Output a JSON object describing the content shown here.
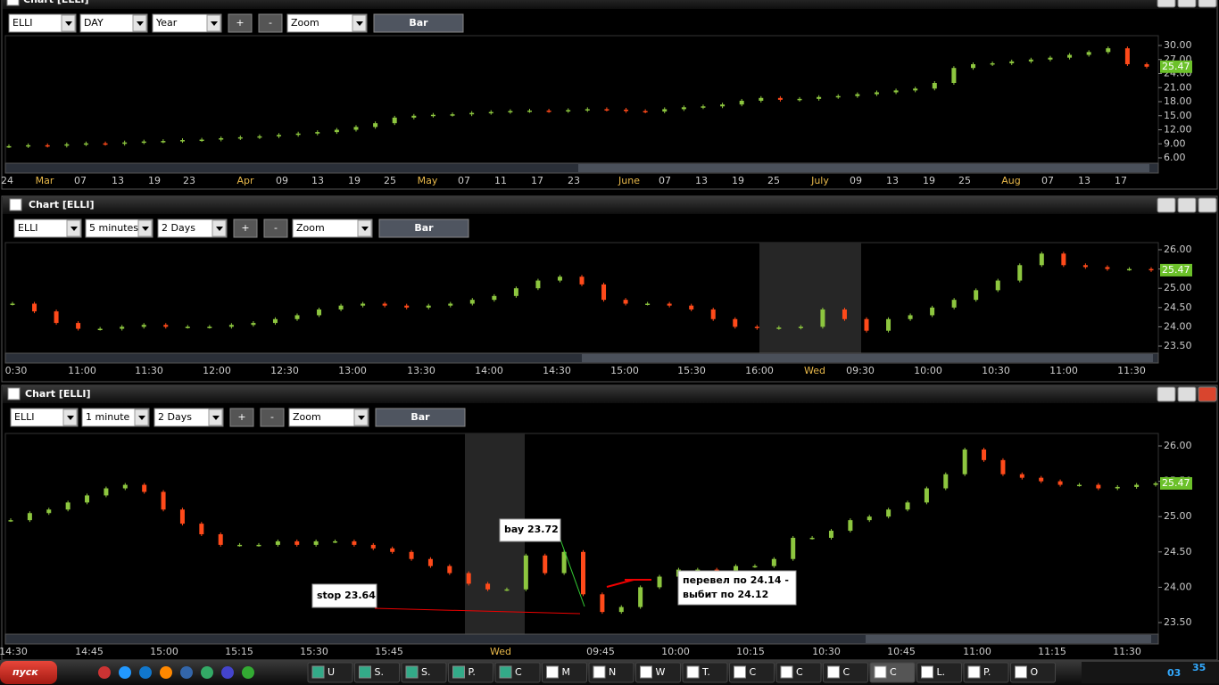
{
  "windows": [
    {
      "title": "Chart [ELLI]",
      "symbol": "ELLI",
      "interval": "DAY",
      "range": "Year",
      "plus": "+",
      "minus": "-",
      "zoom": "Zoom",
      "mode": "Bar",
      "price_tag": "25.47",
      "yticks": [
        {
          "value": 30,
          "label": "30.00"
        },
        {
          "value": 27,
          "label": "27.00"
        },
        {
          "value": 24,
          "label": "24.00"
        },
        {
          "value": 21,
          "label": "21.00"
        },
        {
          "value": 18,
          "label": "18.00"
        },
        {
          "value": 15,
          "label": "15.00"
        },
        {
          "value": 12,
          "label": "12.00"
        },
        {
          "value": 9,
          "label": "9.00"
        },
        {
          "value": 6,
          "label": "6.00"
        }
      ],
      "x_labels": [
        "24",
        "Mar",
        "07",
        "13",
        "19",
        "23",
        "Apr",
        "09",
        "13",
        "19",
        "25",
        "May",
        "07",
        "11",
        "17",
        "23",
        "June",
        "07",
        "13",
        "19",
        "25",
        "July",
        "09",
        "13",
        "19",
        "25",
        "Aug",
        "07",
        "13",
        "17"
      ],
      "closes": [
        8.5,
        8.7,
        8.6,
        8.9,
        9.1,
        9.0,
        9.3,
        9.5,
        9.6,
        9.8,
        9.9,
        10.2,
        10.4,
        10.6,
        10.9,
        11.2,
        11.5,
        12.0,
        12.6,
        13.4,
        14.6,
        15.0,
        15.2,
        15.3,
        15.6,
        15.8,
        16.0,
        16.1,
        16.0,
        16.2,
        16.4,
        16.3,
        16.0,
        15.9,
        16.4,
        16.8,
        17.0,
        17.4,
        18.2,
        18.8,
        18.4,
        18.6,
        19.0,
        19.2,
        19.6,
        20.0,
        20.4,
        20.8,
        22.0,
        25.2,
        26.0,
        26.2,
        26.6,
        27.0,
        27.4,
        28.0,
        28.6,
        29.4,
        26.0,
        25.47
      ]
    },
    {
      "title": "Chart [ELLI]",
      "symbol": "ELLI",
      "interval": "5 minutes",
      "range": "2 Days",
      "plus": "+",
      "minus": "-",
      "zoom": "Zoom",
      "mode": "Bar",
      "price_tag": "25.47",
      "yticks": [
        {
          "value": 26,
          "label": "26.00"
        },
        {
          "value": 25.5,
          "label": "25.50"
        },
        {
          "value": 25,
          "label": "25.00"
        },
        {
          "value": 24.5,
          "label": "24.50"
        },
        {
          "value": 24,
          "label": "24.00"
        },
        {
          "value": 23.5,
          "label": "23.50"
        }
      ],
      "x_labels": [
        "0:30",
        "11:00",
        "11:30",
        "12:00",
        "12:30",
        "13:00",
        "13:30",
        "14:00",
        "14:30",
        "15:00",
        "15:30",
        "16:00",
        "Wed",
        "09:30",
        "10:00",
        "10:30",
        "11:00",
        "11:30"
      ],
      "closes": [
        24.6,
        24.4,
        24.1,
        23.95,
        23.95,
        24.0,
        24.05,
        24.0,
        24.0,
        24.0,
        24.05,
        24.1,
        24.2,
        24.3,
        24.45,
        24.55,
        24.6,
        24.55,
        24.5,
        24.55,
        24.6,
        24.7,
        24.8,
        25.0,
        25.2,
        25.3,
        25.1,
        24.7,
        24.6,
        24.6,
        24.55,
        24.45,
        24.2,
        24.0,
        23.97,
        23.98,
        24.0,
        24.45,
        24.2,
        23.9,
        24.2,
        24.3,
        24.5,
        24.7,
        24.95,
        25.2,
        25.6,
        25.9,
        25.6,
        25.55,
        25.5,
        25.5,
        25.47
      ]
    },
    {
      "title": "Chart [ELLI]",
      "symbol": "ELLI",
      "interval": "1 minute",
      "range": "2 Days",
      "plus": "+",
      "minus": "-",
      "zoom": "Zoom",
      "mode": "Bar",
      "price_tag": "25.47",
      "yticks": [
        {
          "value": 26,
          "label": "26.00"
        },
        {
          "value": 25.5,
          "label": "25.50"
        },
        {
          "value": 25,
          "label": "25.00"
        },
        {
          "value": 24.5,
          "label": "24.50"
        },
        {
          "value": 24,
          "label": "24.00"
        },
        {
          "value": 23.5,
          "label": "23.50"
        }
      ],
      "x_labels": [
        "14:30",
        "14:45",
        "15:00",
        "15:15",
        "15:30",
        "15:45",
        "Wed",
        "09:45",
        "10:00",
        "10:15",
        "10:30",
        "10:45",
        "11:00",
        "11:15",
        "11:30"
      ],
      "closes": [
        24.95,
        25.05,
        25.1,
        25.2,
        25.3,
        25.4,
        25.45,
        25.35,
        25.1,
        24.9,
        24.75,
        24.6,
        24.6,
        24.6,
        24.65,
        24.6,
        24.65,
        24.65,
        24.6,
        24.55,
        24.5,
        24.4,
        24.3,
        24.2,
        24.05,
        23.97,
        23.97,
        24.45,
        24.2,
        24.5,
        23.9,
        23.65,
        23.72,
        24.0,
        24.15,
        24.25,
        24.25,
        24.2,
        24.3,
        24.3,
        24.4,
        24.7,
        24.7,
        24.8,
        24.95,
        25.0,
        25.1,
        25.2,
        25.4,
        25.6,
        25.95,
        25.8,
        25.6,
        25.55,
        25.5,
        25.45,
        25.45,
        25.4,
        25.42,
        25.45,
        25.47
      ],
      "annotations": {
        "buy": "bay 23.72",
        "stop": "stop 23.64",
        "moved": "перевел по 24.14 -",
        "stopped": "выбит по 24.12"
      }
    }
  ],
  "taskbar": {
    "start": "пуск",
    "items": [
      "U",
      "S.",
      "S.",
      "P.",
      "C",
      "M",
      "N",
      "W",
      "T.",
      "C",
      "C",
      "C",
      "C",
      "L.",
      "P.",
      "O"
    ],
    "clock_hour": "03",
    "clock_minute": "35"
  }
}
